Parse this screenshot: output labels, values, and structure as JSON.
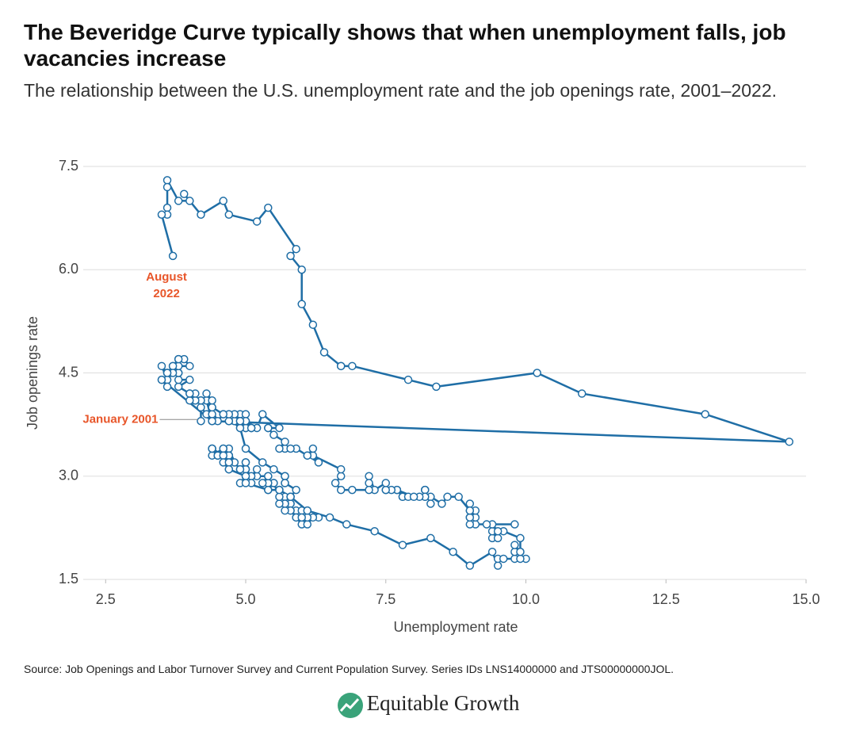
{
  "chart_data": {
    "type": "line",
    "markers": true,
    "title": "The Beveridge Curve typically shows that when unemployment falls, job vacancies increase",
    "subtitle": "The relationship between the U.S. unemployment rate and the job openings rate, 2001–2022.",
    "x_label": "Unemployment rate",
    "y_label": "Job openings rate",
    "color": "#1f6ea6",
    "annotation_color": "#e8562a",
    "grid": true,
    "xlim": [
      2.1,
      15.0
    ],
    "ylim": [
      1.5,
      7.5
    ],
    "xticks": [
      2.5,
      {
        "value": 5,
        "label": "5.0"
      },
      7.5,
      {
        "value": 10,
        "label": "10.0"
      },
      12.5,
      {
        "value": 15,
        "label": "15.0"
      }
    ],
    "yticks": [
      1.5,
      {
        "value": 3,
        "label": "3.0"
      },
      4.5,
      {
        "value": 6,
        "label": "6.0"
      },
      7.5
    ],
    "annotations": [
      {
        "lines": [
          "August",
          "2022"
        ]
      },
      {
        "lines": [
          "January 2001"
        ]
      }
    ],
    "x": [
      4.2,
      4.2,
      4.3,
      4.4,
      4.3,
      4.5,
      4.6,
      4.9,
      5.0,
      5.3,
      5.5,
      5.7,
      5.7,
      5.7,
      5.7,
      5.9,
      5.8,
      5.8,
      5.8,
      5.7,
      5.7,
      5.7,
      5.9,
      6.0,
      5.8,
      5.9,
      5.9,
      6.0,
      6.1,
      6.3,
      6.2,
      6.1,
      6.1,
      6.0,
      5.8,
      5.7,
      5.7,
      5.6,
      5.8,
      5.6,
      5.6,
      5.6,
      5.5,
      5.4,
      5.4,
      5.5,
      5.4,
      5.4,
      5.3,
      5.4,
      5.2,
      5.2,
      5.1,
      5.0,
      5.0,
      4.9,
      5.0,
      5.0,
      5.0,
      4.9,
      4.7,
      4.8,
      4.7,
      4.7,
      4.6,
      4.6,
      4.7,
      4.7,
      4.5,
      4.4,
      4.5,
      4.4,
      4.6,
      4.5,
      4.4,
      4.5,
      4.4,
      4.6,
      4.7,
      4.6,
      4.7,
      4.7,
      4.7,
      5.0,
      5.0,
      4.9,
      5.1,
      5.0,
      5.4,
      5.6,
      5.8,
      6.1,
      6.1,
      6.5,
      6.8,
      7.3,
      7.8,
      8.3,
      8.7,
      9.0,
      9.4,
      9.5,
      9.5,
      9.6,
      9.8,
      10.0,
      9.9,
      9.9,
      9.8,
      9.8,
      9.9,
      9.9,
      9.6,
      9.4,
      9.4,
      9.5,
      9.5,
      9.4,
      9.8,
      9.3,
      9.1,
      9.0,
      9.0,
      9.1,
      9.0,
      9.1,
      9.0,
      9.0,
      9.0,
      8.8,
      8.6,
      8.5,
      8.3,
      8.3,
      8.2,
      8.2,
      8.2,
      8.2,
      8.2,
      8.1,
      7.8,
      7.8,
      7.7,
      7.9,
      8.0,
      7.7,
      7.5,
      7.6,
      7.5,
      7.5,
      7.3,
      7.2,
      7.2,
      7.2,
      6.9,
      6.7,
      6.6,
      6.7,
      6.7,
      6.2,
      6.3,
      6.1,
      6.2,
      6.1,
      5.9,
      5.7,
      5.8,
      5.6,
      5.7,
      5.5,
      5.4,
      5.4,
      5.6,
      5.3,
      5.2,
      5.1,
      5.0,
      5.0,
      5.1,
      5.0,
      4.8,
      4.9,
      5.0,
      5.1,
      4.8,
      4.9,
      4.8,
      4.9,
      5.0,
      4.9,
      4.7,
      4.7,
      4.7,
      4.6,
      4.4,
      4.4,
      4.4,
      4.3,
      4.3,
      4.4,
      4.2,
      4.1,
      4.2,
      4.1,
      4.0,
      4.1,
      4.0,
      4.0,
      3.8,
      4.0,
      3.8,
      3.8,
      3.7,
      3.8,
      3.8,
      3.9,
      4.0,
      3.8,
      3.8,
      3.7,
      3.6,
      3.6,
      3.7,
      3.6,
      3.5,
      3.6,
      3.6,
      3.6,
      3.5,
      3.5,
      4.4,
      14.7,
      13.2,
      11.0,
      10.2,
      8.4,
      7.9,
      6.9,
      6.7,
      6.7,
      6.4,
      6.2,
      6.0,
      6.0,
      5.8,
      5.9,
      5.4,
      5.2,
      4.7,
      4.6,
      4.2,
      3.9,
      4.0,
      3.8,
      3.6,
      3.6,
      3.6,
      3.6,
      3.5,
      3.7
    ],
    "values": [
      3.8,
      4.0,
      3.9,
      3.8,
      4.1,
      3.8,
      3.9,
      3.7,
      3.4,
      3.2,
      3.1,
      3.0,
      3.0,
      2.9,
      2.9,
      2.8,
      2.7,
      2.6,
      2.6,
      2.6,
      2.7,
      2.6,
      2.5,
      2.5,
      2.5,
      2.4,
      2.4,
      2.3,
      2.4,
      2.4,
      2.4,
      2.3,
      2.4,
      2.4,
      2.5,
      2.5,
      2.6,
      2.6,
      2.7,
      2.8,
      2.8,
      2.7,
      2.9,
      2.8,
      2.9,
      2.9,
      2.9,
      3.0,
      2.9,
      3.0,
      3.0,
      3.1,
      3.0,
      3.1,
      3.1,
      3.1,
      3.2,
      3.1,
      3.2,
      3.1,
      3.3,
      3.2,
      3.4,
      3.3,
      3.3,
      3.4,
      3.3,
      3.3,
      3.3,
      3.4,
      3.3,
      3.3,
      3.4,
      3.3,
      3.4,
      3.3,
      3.4,
      3.3,
      3.2,
      3.2,
      3.1,
      3.2,
      3.1,
      3.0,
      3.0,
      2.9,
      2.9,
      2.9,
      2.8,
      2.8,
      2.7,
      2.5,
      2.5,
      2.4,
      2.3,
      2.2,
      2.0,
      2.1,
      1.9,
      1.7,
      1.9,
      1.7,
      1.8,
      1.8,
      1.8,
      1.8,
      1.8,
      1.9,
      1.9,
      2.0,
      1.9,
      2.1,
      2.2,
      2.1,
      2.2,
      2.1,
      2.2,
      2.3,
      2.3,
      2.3,
      2.3,
      2.3,
      2.4,
      2.4,
      2.4,
      2.5,
      2.5,
      2.6,
      2.5,
      2.7,
      2.7,
      2.6,
      2.7,
      2.6,
      2.8,
      2.7,
      2.8,
      2.8,
      2.7,
      2.7,
      2.7,
      2.7,
      2.8,
      2.7,
      2.7,
      2.8,
      2.8,
      2.8,
      2.8,
      2.9,
      2.8,
      3.0,
      2.9,
      2.8,
      2.8,
      2.8,
      2.9,
      3.0,
      3.1,
      3.3,
      3.2,
      3.3,
      3.4,
      3.3,
      3.4,
      3.4,
      3.4,
      3.4,
      3.5,
      3.6,
      3.7,
      3.7,
      3.7,
      3.9,
      3.7,
      3.7,
      3.7,
      3.8,
      3.7,
      3.7,
      3.8,
      3.9,
      3.9,
      3.7,
      3.8,
      3.8,
      3.9,
      3.7,
      3.8,
      3.8,
      3.8,
      3.8,
      3.9,
      3.9,
      4.0,
      3.9,
      4.0,
      4.1,
      4.2,
      4.1,
      4.1,
      4.1,
      4.1,
      4.1,
      4.1,
      4.2,
      4.2,
      4.2,
      4.3,
      4.4,
      4.4,
      4.5,
      4.6,
      4.5,
      4.7,
      4.7,
      4.6,
      4.6,
      4.7,
      4.6,
      4.5,
      4.4,
      4.5,
      4.5,
      4.6,
      4.4,
      4.5,
      4.3,
      4.4,
      4.4,
      3.8,
      3.5,
      3.9,
      4.2,
      4.5,
      4.3,
      4.4,
      4.6,
      4.6,
      4.6,
      4.8,
      5.2,
      5.5,
      6.0,
      6.2,
      6.3,
      6.9,
      6.7,
      6.8,
      7.0,
      6.8,
      7.1,
      7.0,
      7.0,
      7.3,
      7.2,
      6.9,
      6.8,
      6.8,
      6.2
    ]
  },
  "source": "Source: Job Openings and Labor Turnover Survey and Current Population Survey. Series IDs LNS14000000 and JTS00000000JOL.",
  "logo": "Equitable Growth"
}
